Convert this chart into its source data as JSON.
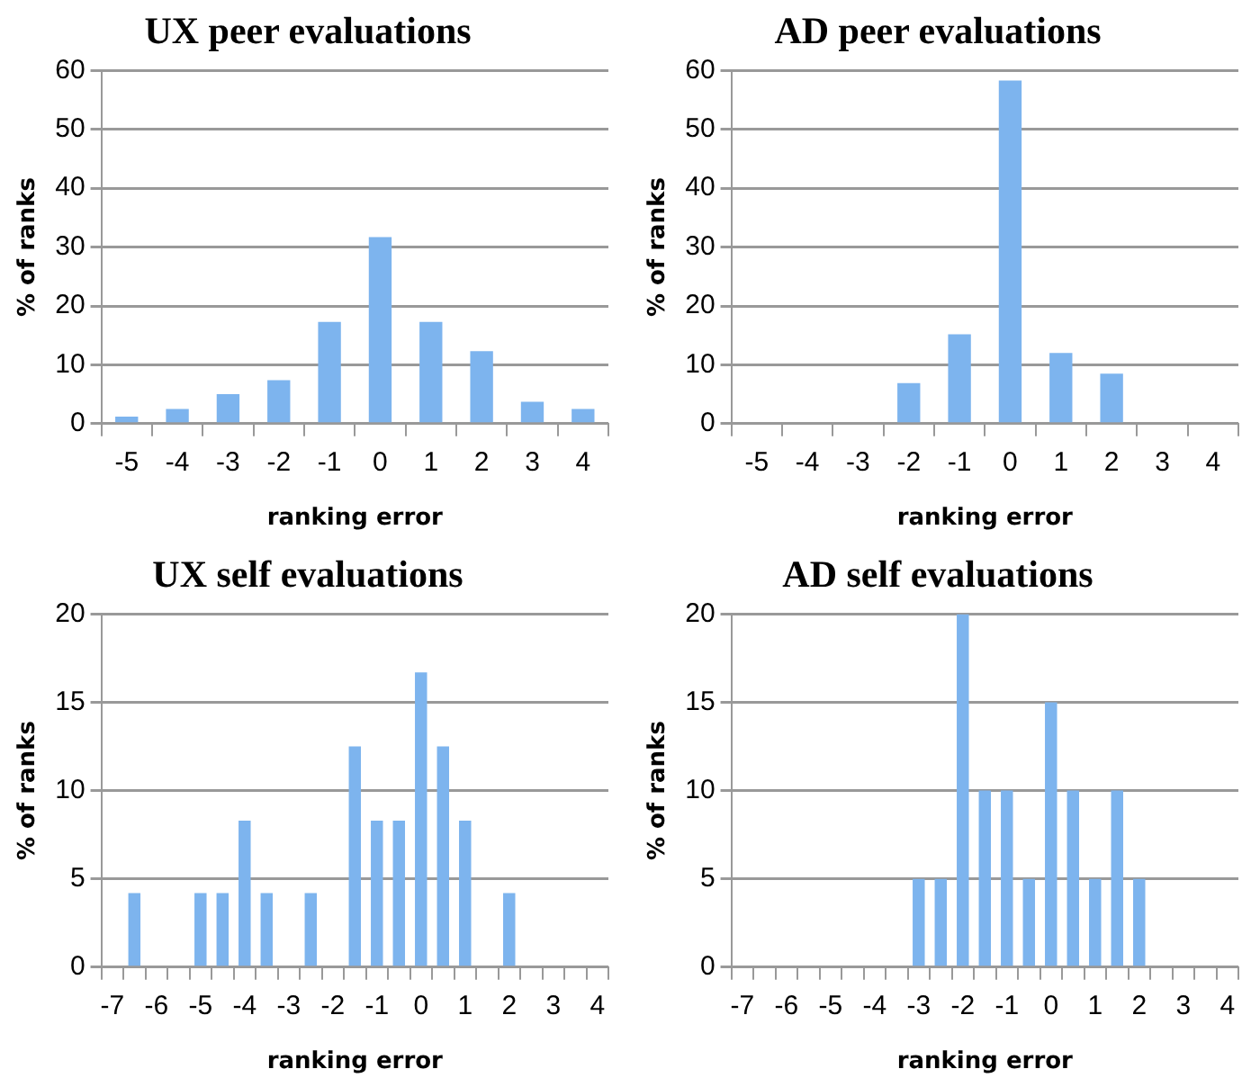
{
  "chart_data": [
    {
      "type": "bar",
      "title": "UX peer evaluations",
      "xlabel": "ranking error",
      "ylabel": "% of ranks",
      "categories": [
        "-5",
        "-4",
        "-3",
        "-2",
        "-1",
        "0",
        "1",
        "2",
        "3",
        "4"
      ],
      "values": [
        1.2,
        2.5,
        5,
        7.4,
        17.3,
        31.7,
        17.3,
        12.3,
        3.7,
        2.5
      ],
      "color": "#7db4ee",
      "ylim": [
        0,
        60
      ],
      "yticks": [
        0,
        10,
        20,
        30,
        40,
        50,
        60
      ],
      "grid": "y",
      "legend": false
    },
    {
      "type": "bar",
      "title": "AD peer evaluations",
      "xlabel": "ranking error",
      "ylabel": "% of ranks",
      "categories": [
        "-5",
        "-4",
        "-3",
        "-2",
        "-1",
        "0",
        "1",
        "2",
        "3",
        "4"
      ],
      "values": [
        0,
        0,
        0,
        6.9,
        15.2,
        58.3,
        12,
        8.5,
        0,
        0
      ],
      "color": "#7db4ee",
      "ylim": [
        0,
        60
      ],
      "yticks": [
        0,
        10,
        20,
        30,
        40,
        50,
        60
      ],
      "grid": "y",
      "legend": false
    },
    {
      "type": "bar",
      "title": "UX self evaluations",
      "xlabel": "ranking error",
      "ylabel": "% of ranks",
      "categories": [
        "-7",
        null,
        "-6",
        null,
        "-5",
        null,
        "-4",
        null,
        "-3",
        null,
        "-2",
        null,
        "-1",
        null,
        "0",
        null,
        "1",
        null,
        "2",
        null,
        "3",
        null,
        "4"
      ],
      "values": [
        0,
        4.2,
        0,
        0,
        4.2,
        4.2,
        8.3,
        4.2,
        0,
        4.2,
        0,
        12.5,
        8.3,
        8.3,
        16.7,
        12.5,
        8.3,
        0,
        4.2,
        0,
        0,
        0,
        0
      ],
      "color": "#7db4ee",
      "ylim": [
        0,
        20
      ],
      "yticks": [
        0,
        5,
        10,
        15,
        20
      ],
      "grid": "y",
      "legend": false
    },
    {
      "type": "bar",
      "title": "AD self evaluations",
      "xlabel": "ranking error",
      "ylabel": "% of ranks",
      "categories": [
        "-7",
        null,
        "-6",
        null,
        "-5",
        null,
        "-4",
        null,
        "-3",
        null,
        "-2",
        null,
        "-1",
        null,
        "0",
        null,
        "1",
        null,
        "2",
        null,
        "3",
        null,
        "4"
      ],
      "values": [
        0,
        0,
        0,
        0,
        0,
        0,
        0,
        0,
        5,
        5,
        20,
        10,
        10,
        5,
        15,
        10,
        5,
        10,
        5,
        0,
        0,
        0,
        0
      ],
      "color": "#7db4ee",
      "ylim": [
        0,
        20
      ],
      "yticks": [
        0,
        5,
        10,
        15,
        20
      ],
      "grid": "y",
      "legend": false
    }
  ]
}
